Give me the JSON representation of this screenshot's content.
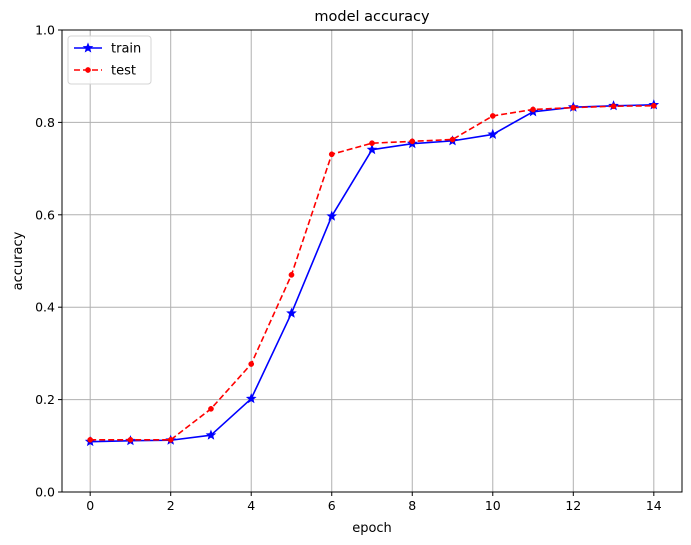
{
  "chart_data": {
    "type": "line",
    "title": "model accuracy",
    "xlabel": "epoch",
    "ylabel": "accuracy",
    "xlim": [
      -0.7,
      14.7
    ],
    "ylim": [
      0.0,
      1.0
    ],
    "xticks": [
      0,
      2,
      4,
      6,
      8,
      10,
      12,
      14
    ],
    "xtick_labels": [
      "0",
      "2",
      "4",
      "6",
      "8",
      "10",
      "12",
      "14"
    ],
    "yticks": [
      0.0,
      0.2,
      0.4,
      0.6,
      0.8,
      1.0
    ],
    "ytick_labels": [
      "0.0",
      "0.2",
      "0.4",
      "0.6",
      "0.8",
      "1.0"
    ],
    "grid": true,
    "legend_position": "top-left",
    "x": [
      0,
      1,
      2,
      3,
      4,
      5,
      6,
      7,
      8,
      9,
      10,
      11,
      12,
      13,
      14
    ],
    "series": [
      {
        "name": "train",
        "color": "#0000ff",
        "line_style": "solid",
        "marker": "star",
        "values": [
          0.109,
          0.111,
          0.112,
          0.123,
          0.202,
          0.387,
          0.597,
          0.741,
          0.754,
          0.76,
          0.774,
          0.823,
          0.833,
          0.836,
          0.838
        ]
      },
      {
        "name": "test",
        "color": "#ff0000",
        "line_style": "dashed",
        "marker": "dot",
        "values": [
          0.113,
          0.113,
          0.113,
          0.18,
          0.277,
          0.47,
          0.731,
          0.755,
          0.759,
          0.763,
          0.814,
          0.828,
          0.832,
          0.835,
          0.836
        ]
      }
    ]
  }
}
